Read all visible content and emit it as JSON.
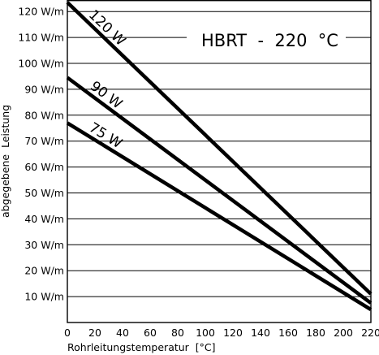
{
  "chart_data": {
    "type": "line",
    "title": "",
    "xlabel": "Rohrleitungstemperatur  [°C]",
    "ylabel": "abgegebene  Leistung",
    "xlim": [
      0,
      220
    ],
    "ylim": [
      0,
      125
    ],
    "x_ticks": [
      "0",
      "20",
      "40",
      "60",
      "80",
      "100",
      "120",
      "140",
      "160",
      "180",
      "200",
      "220"
    ],
    "y_ticks": [
      "10  W/m",
      "20  W/m",
      "30  W/m",
      "40  W/m",
      "50  W/m",
      "60  W/m",
      "70  W/m",
      "80  W/m",
      "90  W/m",
      "100  W/m",
      "110  W/m",
      "120  W/m"
    ],
    "grid": "horizontal",
    "annotation": "HBRT  -  220  °C",
    "series": [
      {
        "name": "120 W",
        "x": [
          0,
          220
        ],
        "y": [
          123.5,
          11
        ]
      },
      {
        "name": "90 W",
        "x": [
          0,
          220
        ],
        "y": [
          94.5,
          7.5
        ]
      },
      {
        "name": "75 W",
        "x": [
          0,
          220
        ],
        "y": [
          77,
          5
        ]
      }
    ]
  }
}
